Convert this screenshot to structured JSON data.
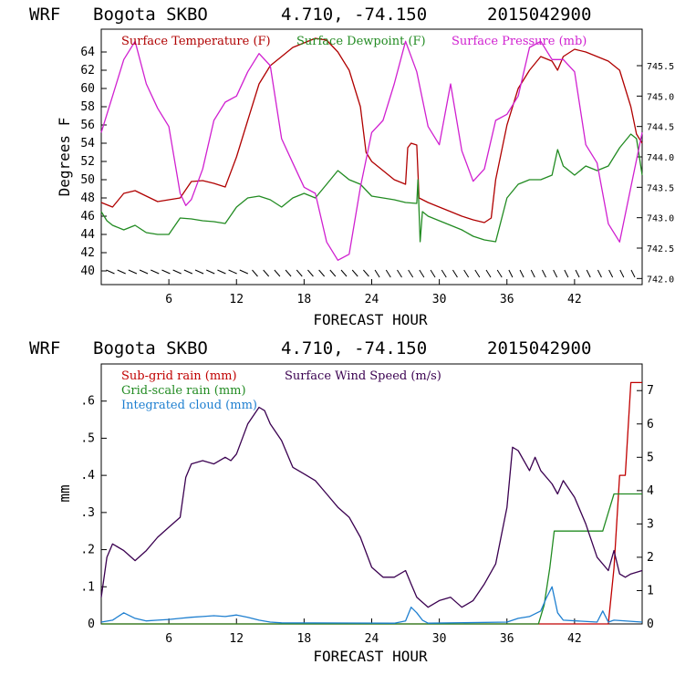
{
  "charts": [
    {
      "header": {
        "model": "WRF",
        "station": "Bogota SKBO",
        "coords": "4.710, -74.150",
        "run": "2015042900"
      },
      "xlabel": "FORECAST HOUR",
      "ylabel": "Degrees F",
      "x_ticks": [
        "6",
        "12",
        "18",
        "24",
        "30",
        "36",
        "42"
      ],
      "y_ticks": [
        "40",
        "42",
        "44",
        "46",
        "48",
        "50",
        "52",
        "54",
        "56",
        "58",
        "60",
        "62",
        "64"
      ],
      "y2_ticks": [
        "742.0",
        "742.5",
        "743.0",
        "743.5",
        "744.0",
        "744.5",
        "745.0",
        "745.5"
      ],
      "legend": [
        {
          "label": "Surface Temperature (F)",
          "color": "#b00000"
        },
        {
          "label": "Surface Dewpoint (F)",
          "color": "#228b22"
        },
        {
          "label": "Surface Pressure (mb)",
          "color": "#d020d0"
        }
      ]
    },
    {
      "header": {
        "model": "WRF",
        "station": "Bogota SKBO",
        "coords": "4.710, -74.150",
        "run": "2015042900"
      },
      "xlabel": "FORECAST HOUR",
      "ylabel": "mm",
      "x_ticks": [
        "6",
        "12",
        "18",
        "24",
        "30",
        "36",
        "42"
      ],
      "y_ticks": [
        "0",
        ".1",
        ".2",
        ".3",
        ".4",
        ".5",
        ".6"
      ],
      "y2_ticks": [
        "0",
        "1",
        "2",
        "3",
        "4",
        "5",
        "6",
        "7"
      ],
      "legend": [
        {
          "label": "Sub-grid rain (mm)",
          "color": "#c00000"
        },
        {
          "label": "Surface Wind Speed (m/s)",
          "color": "#3a0050"
        },
        {
          "label": "Grid-scale rain (mm)",
          "color": "#228b22"
        },
        {
          "label": "Integrated cloud (mm)",
          "color": "#1e7fd0"
        }
      ]
    }
  ],
  "chart_data": [
    {
      "type": "line",
      "title": "WRF Bogota SKBO 4.710, -74.150 2015042900",
      "xlabel": "FORECAST HOUR",
      "ylabel": "Degrees F",
      "xlim": [
        0,
        48
      ],
      "ylim": [
        38.5,
        66.5
      ],
      "y2lim": [
        741.9,
        746.1
      ],
      "series": [
        {
          "name": "Surface Temperature (F)",
          "axis": "left",
          "color": "#b00000",
          "x": [
            0,
            1,
            2,
            3,
            4,
            5,
            6,
            7,
            8,
            9,
            10,
            11,
            12,
            13,
            14,
            15,
            16,
            17,
            18,
            19,
            20,
            21,
            22,
            23,
            23.5,
            24,
            25,
            26,
            27,
            27.2,
            27.5,
            28,
            28.2,
            29,
            30,
            31,
            32,
            33,
            34,
            34.6,
            35,
            36,
            37,
            38,
            39,
            40,
            40.5,
            41,
            42,
            43,
            44,
            45,
            46,
            47,
            47.5,
            48
          ],
          "y": [
            47.5,
            47,
            48.5,
            48.8,
            48.2,
            47.6,
            47.8,
            48,
            49.8,
            49.9,
            49.6,
            49.2,
            52.5,
            56.5,
            60.5,
            62.5,
            63.5,
            64.5,
            65,
            65.5,
            65.3,
            64,
            62,
            58,
            53,
            52,
            51,
            50,
            49.5,
            53.5,
            54,
            53.8,
            48,
            47.5,
            47,
            46.5,
            46,
            45.6,
            45.3,
            45.8,
            50,
            56,
            60,
            62,
            63.5,
            63,
            62,
            63.5,
            64.3,
            64,
            63.5,
            63,
            62,
            58,
            55,
            54
          ]
        },
        {
          "name": "Surface Dewpoint (F)",
          "axis": "left",
          "color": "#228b22",
          "x": [
            0,
            0.5,
            1,
            2,
            3,
            4,
            5,
            6,
            7,
            8,
            9,
            10,
            11,
            12,
            13,
            14,
            15,
            16,
            17,
            18,
            19,
            20,
            21,
            22,
            23,
            24,
            25,
            26,
            27,
            28,
            28.1,
            28.3,
            28.5,
            29,
            30,
            31,
            32,
            33,
            34,
            35,
            36,
            37,
            38,
            39,
            40,
            40.5,
            41,
            42,
            43,
            44,
            45,
            46,
            47,
            47.5,
            48
          ],
          "y": [
            46.5,
            45.5,
            45,
            44.5,
            45,
            44.2,
            44,
            44,
            45.8,
            45.7,
            45.5,
            45.4,
            45.2,
            47,
            48,
            48.2,
            47.8,
            47,
            48,
            48.5,
            48,
            49.5,
            51,
            50,
            49.5,
            48.2,
            48,
            47.8,
            47.5,
            47.4,
            50,
            43.2,
            46.5,
            46,
            45.5,
            45,
            44.5,
            43.8,
            43.4,
            43.2,
            48,
            49.5,
            50,
            50,
            50.5,
            53.3,
            51.5,
            50.5,
            51.5,
            51,
            51.5,
            53.5,
            55,
            54.5,
            50.5
          ]
        },
        {
          "name": "Surface Pressure (mb)",
          "axis": "right",
          "color": "#d020d0",
          "x": [
            0,
            1,
            2,
            3,
            4,
            5,
            6,
            7,
            7.5,
            8,
            9,
            10,
            11,
            12,
            13,
            14,
            15,
            16,
            17,
            18,
            19,
            20,
            21,
            22,
            23,
            24,
            25,
            26,
            27,
            28,
            29,
            30,
            31,
            32,
            33,
            34,
            35,
            36,
            37,
            38,
            39,
            40,
            41,
            42,
            43,
            44,
            45,
            46,
            47,
            48
          ],
          "y": [
            744.4,
            745.0,
            745.6,
            745.9,
            745.2,
            744.8,
            744.5,
            743.4,
            743.2,
            743.3,
            743.8,
            744.6,
            744.9,
            745.0,
            745.4,
            745.7,
            745.5,
            744.3,
            743.9,
            743.5,
            743.4,
            742.6,
            742.3,
            742.4,
            743.5,
            744.4,
            744.6,
            745.2,
            745.9,
            745.4,
            744.5,
            744.2,
            745.2,
            744.1,
            743.6,
            743.8,
            744.6,
            744.7,
            745.0,
            745.8,
            745.9,
            745.6,
            745.6,
            745.4,
            744.2,
            743.9,
            742.9,
            742.6,
            743.5,
            744.4
          ]
        }
      ]
    },
    {
      "type": "line",
      "title": "WRF Bogota SKBO 4.710, -74.150 2015042900",
      "xlabel": "FORECAST HOUR",
      "ylabel": "mm",
      "xlim": [
        0,
        48
      ],
      "ylim": [
        0,
        0.7
      ],
      "y2lim": [
        0,
        7.8
      ],
      "series": [
        {
          "name": "Sub-grid rain (mm)",
          "axis": "left",
          "color": "#c00000",
          "x": [
            0,
            44,
            45,
            45.5,
            46,
            46.5,
            47,
            47.3,
            48
          ],
          "y": [
            0,
            0,
            0,
            0.15,
            0.4,
            0.4,
            0.65,
            0.65,
            0.65
          ]
        },
        {
          "name": "Grid-scale rain (mm)",
          "axis": "left",
          "color": "#228b22",
          "x": [
            0,
            38.8,
            39.3,
            39.8,
            40.2,
            44.5,
            45,
            45.5,
            46,
            48
          ],
          "y": [
            0,
            0,
            0.05,
            0.15,
            0.25,
            0.25,
            0.3,
            0.35,
            0.35,
            0.35
          ]
        },
        {
          "name": "Integrated cloud (mm)",
          "axis": "left",
          "color": "#1e7fd0",
          "x": [
            0,
            1,
            2,
            3,
            4,
            5,
            6,
            7,
            8,
            9,
            10,
            11,
            12,
            13,
            14,
            15,
            16,
            26,
            27,
            27.5,
            28,
            28.5,
            29,
            36,
            37,
            38,
            39,
            39.5,
            40,
            40.5,
            41,
            44,
            44.5,
            45,
            45.5,
            48
          ],
          "y": [
            0.005,
            0.01,
            0.03,
            0.015,
            0.008,
            0.01,
            0.012,
            0.015,
            0.018,
            0.02,
            0.022,
            0.02,
            0.024,
            0.018,
            0.01,
            0.005,
            0.003,
            0.002,
            0.008,
            0.045,
            0.03,
            0.01,
            0.002,
            0.005,
            0.015,
            0.02,
            0.035,
            0.07,
            0.1,
            0.03,
            0.01,
            0.005,
            0.035,
            0.005,
            0.01,
            0.005
          ]
        },
        {
          "name": "Surface Wind Speed (m/s)",
          "axis": "right",
          "color": "#3a0050",
          "x": [
            0,
            0.5,
            1,
            2,
            3,
            4,
            5,
            6,
            7,
            7.5,
            8,
            9,
            10,
            11,
            11.5,
            12,
            13,
            14,
            14.5,
            15,
            16,
            17,
            18,
            19,
            20,
            21,
            22,
            23,
            24,
            25,
            26,
            27,
            27.5,
            28,
            29,
            30,
            31,
            32,
            33,
            34,
            35,
            36,
            36.5,
            37,
            38,
            38.5,
            39,
            40,
            40.5,
            41,
            42,
            43,
            44,
            45,
            45.5,
            46,
            46.5,
            47,
            48
          ],
          "y": [
            0.8,
            2.0,
            2.4,
            2.2,
            1.9,
            2.2,
            2.6,
            2.9,
            3.2,
            4.4,
            4.8,
            4.9,
            4.8,
            5.0,
            4.9,
            5.1,
            6.0,
            6.5,
            6.4,
            6.0,
            5.5,
            4.7,
            4.5,
            4.3,
            3.9,
            3.5,
            3.2,
            2.6,
            1.7,
            1.4,
            1.4,
            1.6,
            1.2,
            0.8,
            0.5,
            0.7,
            0.8,
            0.5,
            0.7,
            1.2,
            1.8,
            3.5,
            5.3,
            5.2,
            4.6,
            5.0,
            4.6,
            4.2,
            3.9,
            4.3,
            3.8,
            3.0,
            2.0,
            1.6,
            2.2,
            1.5,
            1.4,
            1.5,
            1.6
          ]
        }
      ]
    }
  ]
}
